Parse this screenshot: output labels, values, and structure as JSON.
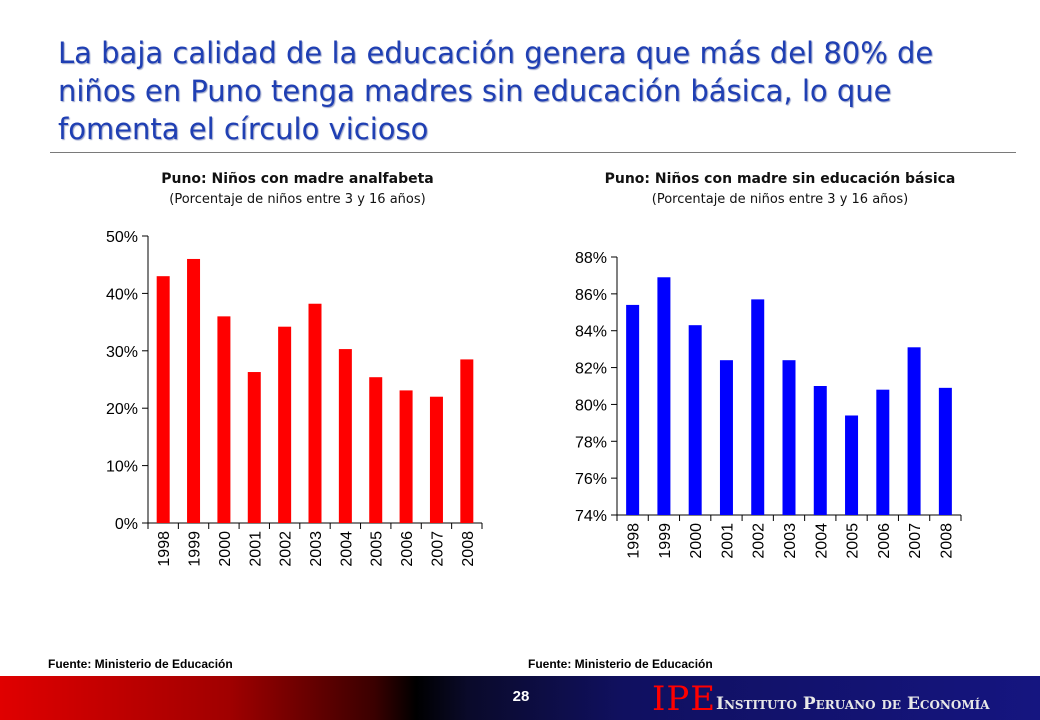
{
  "slide": {
    "title": "La baja calidad de la educación genera que más del 80% de niños en Puno tenga madres sin educación básica, lo que fomenta el círculo vicioso",
    "page_number": "28",
    "logo_mark": "IPE",
    "logo_name": "Instituto Peruano de Economía",
    "colors": {
      "title": "#1f3fb3",
      "left_bars": "#ff0000",
      "right_bars": "#0000ff"
    }
  },
  "chart_data": [
    {
      "type": "bar",
      "title": "Puno: Niños con madre analfabeta",
      "subtitle": "(Porcentaje de niños entre 3 y 16 años)",
      "categories": [
        "1998",
        "1999",
        "2000",
        "2001",
        "2002",
        "2003",
        "2004",
        "2005",
        "2006",
        "2007",
        "2008"
      ],
      "values": [
        43,
        46,
        36,
        26.3,
        34.2,
        38.2,
        30.3,
        25.4,
        23.1,
        22,
        28.5
      ],
      "yticks": [
        "0%",
        "10%",
        "20%",
        "30%",
        "40%",
        "50%"
      ],
      "ylim": [
        0,
        50
      ],
      "ystep": 10,
      "color": "#ff0000",
      "source": "Fuente: Ministerio de Educación"
    },
    {
      "type": "bar",
      "title": "Puno: Niños con madre sin educación básica",
      "subtitle": "(Porcentaje de niños entre 3 y 16 años)",
      "categories": [
        "1998",
        "1999",
        "2000",
        "2001",
        "2002",
        "2003",
        "2004",
        "2005",
        "2006",
        "2007",
        "2008"
      ],
      "values": [
        85.4,
        86.9,
        84.3,
        82.4,
        85.7,
        82.4,
        81.0,
        79.4,
        80.8,
        83.1,
        80.9
      ],
      "yticks": [
        "74%",
        "76%",
        "78%",
        "80%",
        "82%",
        "84%",
        "86%",
        "88%"
      ],
      "ylim": [
        74,
        88
      ],
      "ystep": 2,
      "color": "#0000ff",
      "source": "Fuente: Ministerio de Educación"
    }
  ]
}
